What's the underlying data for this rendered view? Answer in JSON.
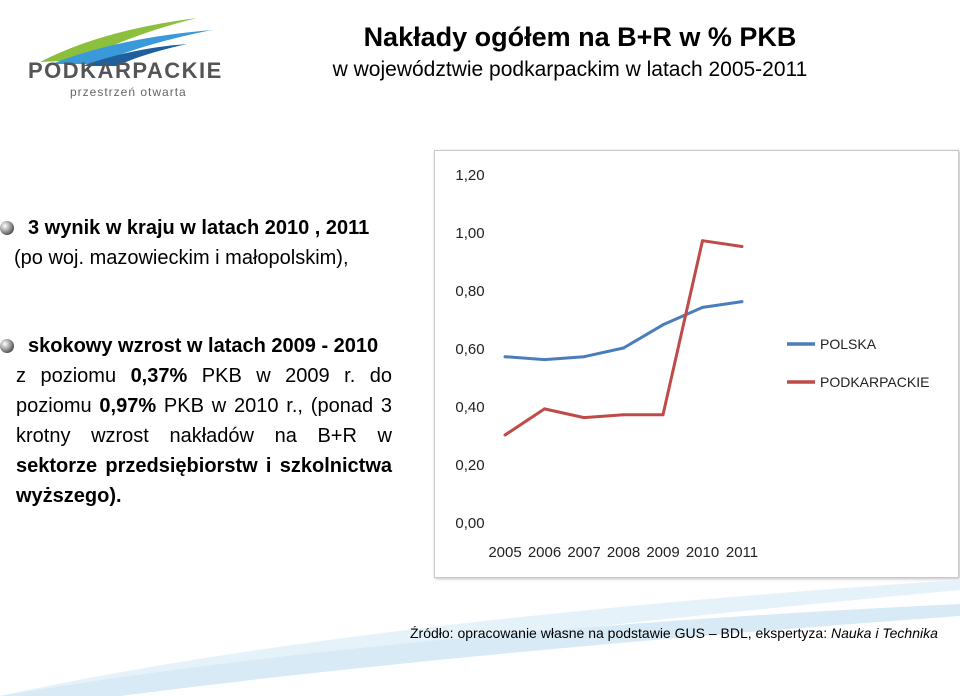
{
  "logo": {
    "name": "PODKARPACKIE",
    "tagline": "przestrzeń otwarta"
  },
  "title": {
    "main": "Nakłady ogółem na B+R w % PKB",
    "sub": "w województwie podkarpackim  w latach 2005-2011"
  },
  "bullets": {
    "b1": {
      "bold": "3 wynik w kraju w latach 2010 , 2011",
      "rest": "(po woj. mazowieckim i małopolskim),"
    },
    "b2": {
      "l1": "skokowy wzrost w latach 2009 - 2010",
      "l2a": "z poziomu ",
      "l2b": "0,37%",
      "l2c": " PKB w 2009 r. do",
      "l3a": "poziomu ",
      "l3b": "0,97%",
      "l3c": " PKB w 2010 r.",
      "l3d": ", (ponad 3",
      "l4": "krotny wzrost nakładów na B+R w",
      "l5": "sektorze przedsiębiorstw i szkolnictwa",
      "l6": "wyższego)."
    }
  },
  "source": {
    "label": "Źródło: opracowanie własne na podstawie  GUS – BDL, ekspertyza: ",
    "italic": "Nauka i Technika"
  },
  "colors": {
    "polska": "#4a7ebb",
    "podkarpackie": "#be4b48"
  },
  "chart_data": {
    "type": "line",
    "categories": [
      "2005",
      "2006",
      "2007",
      "2008",
      "2009",
      "2010",
      "2011"
    ],
    "series": [
      {
        "name": "POLSKA",
        "values": [
          0.57,
          0.56,
          0.57,
          0.6,
          0.68,
          0.74,
          0.76
        ]
      },
      {
        "name": "PODKARPACKIE",
        "values": [
          0.3,
          0.39,
          0.36,
          0.37,
          0.37,
          0.97,
          0.95
        ]
      }
    ],
    "yticks": [
      "0,00",
      "0,20",
      "0,40",
      "0,60",
      "0,80",
      "1,00",
      "1,20"
    ],
    "ylim": [
      0,
      1.2
    ],
    "title": "",
    "xlabel": "",
    "ylabel": "",
    "legend_position": "right"
  }
}
